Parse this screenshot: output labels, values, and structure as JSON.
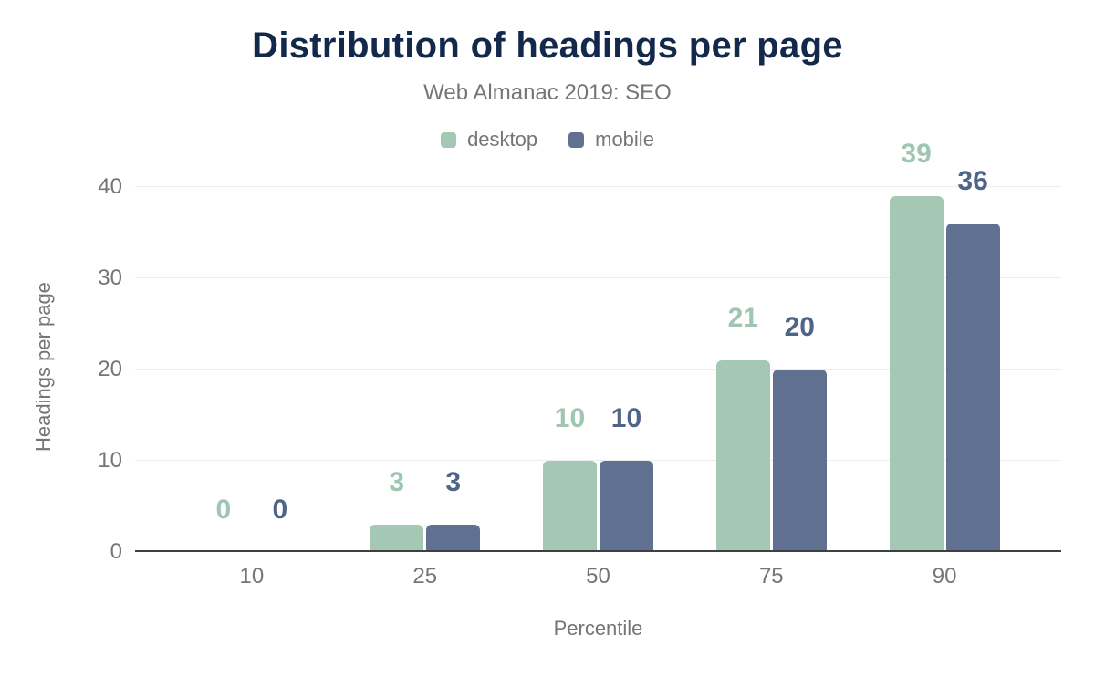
{
  "chart_data": {
    "type": "bar",
    "title": "Distribution of headings per page",
    "subtitle": "Web Almanac 2019: SEO",
    "categories": [
      "10",
      "25",
      "50",
      "75",
      "90"
    ],
    "series": [
      {
        "name": "desktop",
        "color": "#a5c8b5",
        "label_color": "#9fc6b1",
        "values": [
          0,
          3,
          10,
          21,
          39
        ]
      },
      {
        "name": "mobile",
        "color": "#5f7090",
        "label_color": "#4f6489",
        "values": [
          0,
          3,
          10,
          20,
          36
        ]
      }
    ],
    "xlabel": "Percentile",
    "ylabel": "Headings per page",
    "ylim": [
      0,
      40
    ],
    "yticks": [
      0,
      10,
      20,
      30,
      40
    ],
    "grid": "horizontal",
    "legend_position": "top",
    "value_labels": true
  },
  "colors": {
    "title": "#13294b",
    "muted_text": "#757575",
    "gridline": "#ececec",
    "axis_line": "#3c4043",
    "background": "#ffffff"
  }
}
